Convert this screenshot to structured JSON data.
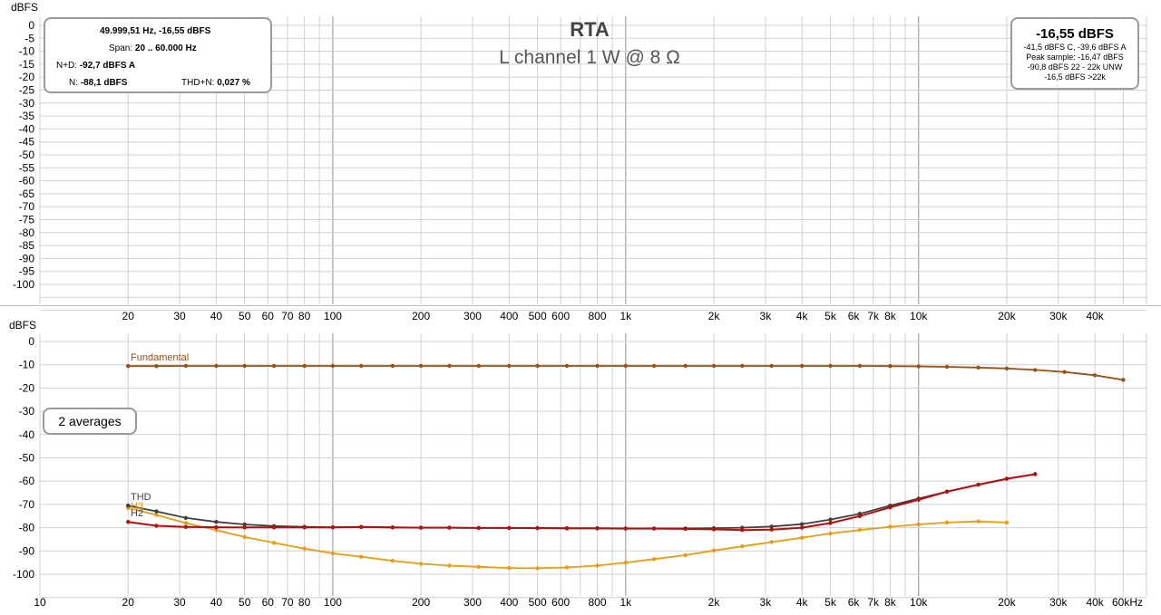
{
  "title": "RTA",
  "subtitle": "L channel 1 W @ 8 Ω",
  "info_left": {
    "cursor_label": "49.999,51 Hz, -16,55 dBFS",
    "span_prefix": "Span:",
    "span_value": "20 .. 60.000 Hz",
    "nd_prefix": "N+D:",
    "nd_value": "-92,7 dBFS A",
    "n_prefix": "N:",
    "n_value": "-88,1 dBFS",
    "thdn_prefix": "THD+N:",
    "thdn_value": "0,027 %"
  },
  "info_right": {
    "level": "-16,55 dBFS",
    "line1": "-41,5 dBFS C, -39,6 dBFS A",
    "line2": "Peak sample: -16,47 dBFS",
    "line3": "-90,8 dBFS 22 - 22k UNW",
    "line4": "-16,5 dBFS >22k"
  },
  "averages_label": "2 averages",
  "colors": {
    "fundamental": "#9b4f14",
    "thd": "#404040",
    "h2": "#b80d0d",
    "h3": "#e89c12",
    "grid": "#d0d0d0",
    "grid_major": "#909090"
  },
  "chart_data": [
    {
      "type": "line",
      "title": "",
      "ylabel": "dBFS",
      "x_scale": "log",
      "xlim": [
        10,
        60000
      ],
      "ylim": [
        -110,
        0
      ],
      "x_tick_labels": [
        "20",
        "30",
        "40",
        "50",
        "60",
        "70",
        "80",
        "100",
        "200",
        "300",
        "400",
        "500",
        "600",
        "800",
        "1k",
        "2k",
        "3k",
        "4k",
        "5k",
        "6k",
        "7k",
        "8k",
        "10k",
        "20k",
        "30k",
        "40k"
      ],
      "y_tick_labels": [
        "0",
        "-5",
        "-10",
        "-15",
        "-20",
        "-25",
        "-30",
        "-35",
        "-40",
        "-45",
        "-50",
        "-55",
        "-60",
        "-65",
        "-70",
        "-75",
        "-80",
        "-85",
        "-90",
        "-95",
        "-100"
      ],
      "series": []
    },
    {
      "type": "line",
      "title": "",
      "ylabel": "dBFS",
      "x_scale": "log",
      "xlim": [
        10,
        60000
      ],
      "ylim": [
        -110,
        0
      ],
      "x_unit_label": "60kHz",
      "x_tick_labels": [
        "10",
        "20",
        "30",
        "40",
        "50",
        "60",
        "70",
        "80",
        "100",
        "200",
        "300",
        "400",
        "500",
        "600",
        "800",
        "1k",
        "2k",
        "3k",
        "4k",
        "5k",
        "6k",
        "7k",
        "8k",
        "10k",
        "20k",
        "30k",
        "40k"
      ],
      "y_tick_labels": [
        "0",
        "-10",
        "-20",
        "-30",
        "-40",
        "-50",
        "-60",
        "-70",
        "-80",
        "-90",
        "-100"
      ],
      "series": [
        {
          "name": "Fundamental",
          "x": [
            20,
            25,
            31.5,
            40,
            50,
            63,
            80,
            100,
            125,
            160,
            200,
            250,
            315,
            400,
            500,
            630,
            800,
            1000,
            1250,
            1600,
            2000,
            2500,
            3150,
            4000,
            5000,
            6300,
            8000,
            10000,
            12500,
            16000,
            20000,
            25000,
            31500,
            40000,
            50000
          ],
          "values": [
            -10.6,
            -10.6,
            -10.5,
            -10.5,
            -10.5,
            -10.5,
            -10.5,
            -10.5,
            -10.5,
            -10.5,
            -10.5,
            -10.5,
            -10.5,
            -10.5,
            -10.5,
            -10.5,
            -10.5,
            -10.5,
            -10.5,
            -10.5,
            -10.5,
            -10.5,
            -10.5,
            -10.5,
            -10.5,
            -10.5,
            -10.6,
            -10.7,
            -10.9,
            -11.2,
            -11.6,
            -12.2,
            -13.1,
            -14.5,
            -16.5
          ]
        },
        {
          "name": "THD",
          "x": [
            20,
            25,
            31.5,
            40,
            50,
            63,
            80,
            100,
            125,
            160,
            200,
            250,
            315,
            400,
            500,
            630,
            800,
            1000,
            1250,
            1600,
            2000,
            2500,
            3150,
            4000,
            5000,
            6300,
            8000,
            10000,
            12500,
            16000,
            20000,
            25000
          ],
          "values": [
            -70.5,
            -73,
            -75.8,
            -77.5,
            -78.6,
            -79.3,
            -79.6,
            -79.8,
            -79.7,
            -79.9,
            -80,
            -80,
            -80.1,
            -80.1,
            -80.1,
            -80.2,
            -80.2,
            -80.3,
            -80.3,
            -80.3,
            -80.2,
            -80,
            -79.5,
            -78.5,
            -76.5,
            -74,
            -70.5,
            -67.5,
            -64.5,
            -61.5,
            -59,
            -57
          ]
        },
        {
          "name": "H2",
          "x": [
            20,
            25,
            31.5,
            40,
            50,
            63,
            80,
            100,
            125,
            160,
            200,
            250,
            315,
            400,
            500,
            630,
            800,
            1000,
            1250,
            1600,
            2000,
            2500,
            3150,
            4000,
            5000,
            6300,
            8000,
            10000,
            12500,
            16000,
            20000,
            25000
          ],
          "values": [
            -77.5,
            -79.2,
            -79.7,
            -79.8,
            -79.9,
            -79.9,
            -79.9,
            -79.9,
            -79.7,
            -79.9,
            -80,
            -80,
            -80.1,
            -80.1,
            -80.2,
            -80.3,
            -80.3,
            -80.4,
            -80.4,
            -80.5,
            -80.7,
            -81,
            -80.8,
            -80,
            -78,
            -75,
            -71.3,
            -68,
            -64.5,
            -61.5,
            -59,
            -57
          ]
        },
        {
          "name": "H3",
          "x": [
            20,
            25,
            31.5,
            40,
            50,
            63,
            80,
            100,
            125,
            160,
            200,
            250,
            315,
            400,
            500,
            630,
            800,
            1000,
            1250,
            1600,
            2000,
            2500,
            3150,
            4000,
            5000,
            6300,
            8000,
            10000,
            12500,
            16000,
            20000
          ],
          "values": [
            -71.5,
            -74.5,
            -78,
            -81,
            -84,
            -86.5,
            -89,
            -91,
            -92.5,
            -94.2,
            -95.5,
            -96.3,
            -96.8,
            -97.3,
            -97.4,
            -97.1,
            -96.3,
            -95,
            -93.5,
            -91.8,
            -89.8,
            -88,
            -86.2,
            -84.3,
            -82.5,
            -81,
            -79.6,
            -78.6,
            -77.8,
            -77.3,
            -77.8
          ]
        }
      ]
    }
  ]
}
